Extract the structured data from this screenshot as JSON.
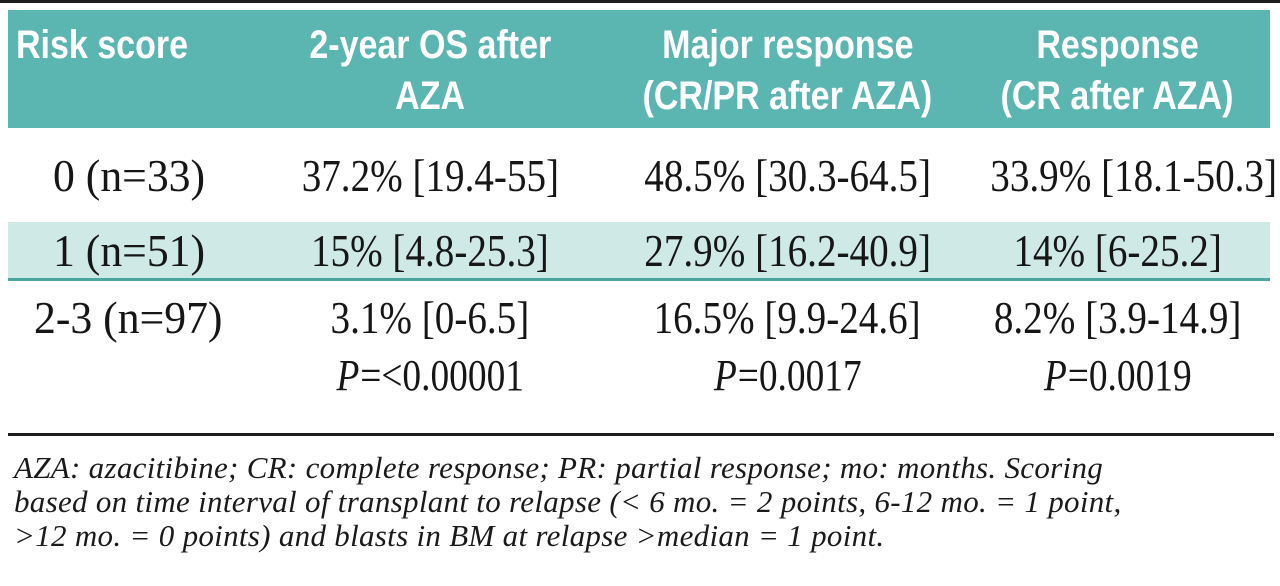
{
  "table": {
    "header": [
      {
        "line1": "Risk score",
        "line2": ""
      },
      {
        "line1": "2-year OS after",
        "line2": "AZA"
      },
      {
        "line1": "Major response",
        "line2": "(CR/PR after AZA)"
      },
      {
        "line1": "Response",
        "line2": "(CR after AZA)"
      }
    ],
    "rows": [
      {
        "cells": [
          "0 (n=33)",
          "37.2% [19.4-55]",
          "48.5% [30.3-64.5]",
          "33.9% [18.1-50.3]"
        ],
        "highlighted": false
      },
      {
        "cells": [
          "1 (n=51)",
          "15% [4.8-25.3]",
          "27.9% [16.2-40.9]",
          "14% [6-25.2]"
        ],
        "highlighted": true
      },
      {
        "cells": [
          "2-3 (n=97)",
          "3.1% [0-6.5]",
          "16.5% [9.9-24.6]",
          "8.2% [3.9-14.9]"
        ],
        "highlighted": false
      }
    ],
    "p_row": {
      "symbol": "P",
      "values": [
        "=<0.00001",
        "=0.0017",
        "=0.0019"
      ]
    }
  },
  "footnote": {
    "lines": [
      "AZA: azacitibine; CR: complete response; PR: partial response; mo: months. Scoring",
      "based on time interval of transplant to relapse (< 6 mo. = 2 points, 6-12 mo. = 1 point,",
      ">12 mo. = 0 points) and blasts in BM at relapse >median = 1 point."
    ]
  },
  "colors": {
    "header_bg": "#5bb5b1",
    "header_text": "#ffffff",
    "highlight_row_bg": "#cfe9e6",
    "highlight_row_border": "#4aa6a1",
    "rule": "#1d1d1d",
    "text": "#161616"
  }
}
